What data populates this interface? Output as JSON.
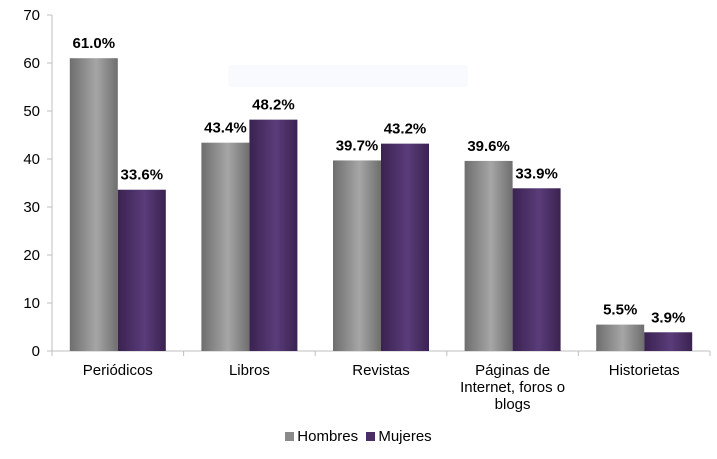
{
  "chart_data": {
    "type": "bar",
    "categories": [
      [
        "Periódicos"
      ],
      [
        "Libros"
      ],
      [
        "Revistas"
      ],
      [
        "Páginas de",
        "Internet, foros o",
        "blogs"
      ],
      [
        "Historietas"
      ]
    ],
    "series": [
      {
        "name": "Hombres",
        "values": [
          61.0,
          43.4,
          39.7,
          39.6,
          5.5
        ],
        "labels": [
          "61.0%",
          "43.4%",
          "39.7%",
          "39.6%",
          "5.5%"
        ]
      },
      {
        "name": "Mujeres",
        "values": [
          33.6,
          48.2,
          43.2,
          33.9,
          3.9
        ],
        "labels": [
          "33.6%",
          "48.2%",
          "43.2%",
          "33.9%",
          "3.9%"
        ]
      }
    ],
    "ylim": [
      0,
      70
    ],
    "yticks": [
      0,
      10,
      20,
      30,
      40,
      50,
      60,
      70
    ],
    "title": "",
    "xlabel": "",
    "ylabel": "",
    "grid": false,
    "legend": "bottom-center",
    "colors": {
      "Hombres_top": "#a6a6a6",
      "Hombres_bottom": "#6e6e6e",
      "Mujeres_top": "#5a3c7a",
      "Mujeres_bottom": "#3a2250",
      "axis": "#bfbfbf"
    }
  }
}
